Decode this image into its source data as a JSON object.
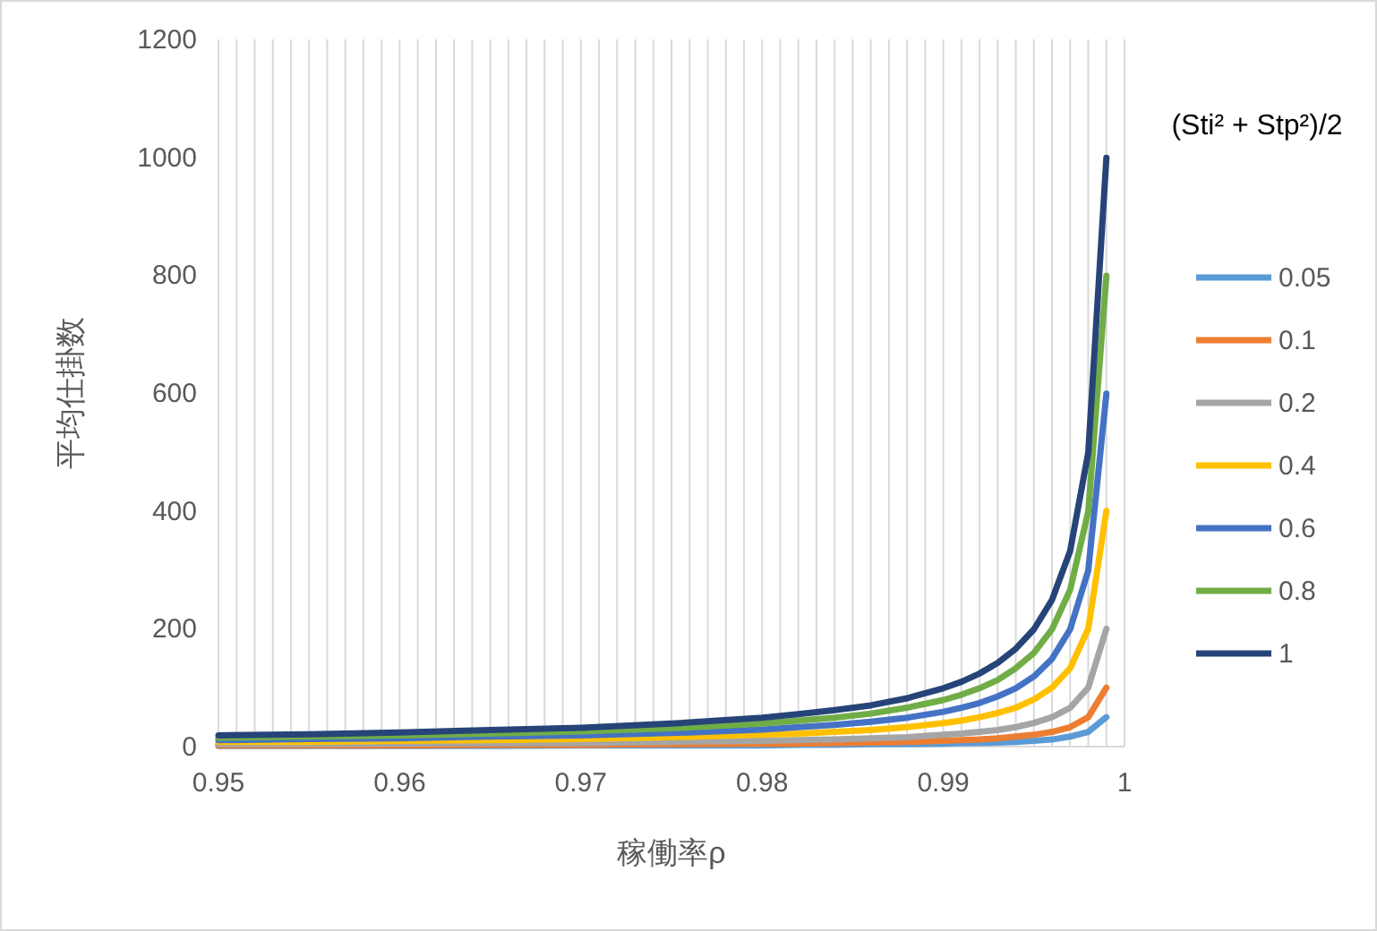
{
  "chart_data": {
    "type": "line",
    "xlabel": "稼働率ρ",
    "ylabel": "平均仕掛数",
    "legend_title": "(Sti² + Stp²)/2",
    "x": [
      0.95,
      0.955,
      0.96,
      0.965,
      0.97,
      0.975,
      0.98,
      0.982,
      0.984,
      0.986,
      0.988,
      0.99,
      0.991,
      0.992,
      0.993,
      0.994,
      0.995,
      0.996,
      0.997,
      0.998,
      0.999
    ],
    "series": [
      {
        "name": "0.05",
        "color": "#5b9bd5",
        "values": [
          1,
          1,
          1,
          1,
          2,
          2,
          2,
          3,
          3,
          4,
          4,
          5,
          6,
          6,
          7,
          8,
          10,
          12,
          17,
          25,
          50
        ]
      },
      {
        "name": "0.1",
        "color": "#ed7d31",
        "values": [
          2,
          2,
          2,
          3,
          3,
          4,
          5,
          5,
          6,
          7,
          8,
          10,
          11,
          12,
          14,
          17,
          20,
          25,
          33,
          50,
          100
        ]
      },
      {
        "name": "0.2",
        "color": "#a5a5a5",
        "values": [
          4,
          4,
          5,
          6,
          6,
          8,
          10,
          11,
          12,
          14,
          16,
          20,
          22,
          25,
          28,
          33,
          40,
          50,
          66,
          100,
          200
        ]
      },
      {
        "name": "0.4",
        "color": "#ffc000",
        "values": [
          8,
          8,
          10,
          11,
          13,
          16,
          20,
          22,
          25,
          28,
          33,
          40,
          44,
          50,
          57,
          66,
          80,
          100,
          133,
          200,
          400
        ]
      },
      {
        "name": "0.6",
        "color": "#4472c4",
        "values": [
          11,
          13,
          14,
          17,
          19,
          23,
          29,
          33,
          37,
          42,
          49,
          59,
          66,
          74,
          85,
          99,
          119,
          149,
          199,
          299,
          599
        ]
      },
      {
        "name": "0.8",
        "color": "#70ad47",
        "values": [
          15,
          17,
          19,
          22,
          26,
          31,
          39,
          44,
          49,
          56,
          66,
          79,
          88,
          99,
          113,
          133,
          159,
          199,
          266,
          399,
          799
        ]
      },
      {
        "name": "1",
        "color": "#264478",
        "values": [
          19,
          21,
          24,
          28,
          32,
          39,
          49,
          55,
          62,
          70,
          82,
          99,
          110,
          124,
          142,
          166,
          199,
          249,
          332,
          499,
          999
        ]
      }
    ],
    "xlim": [
      0.95,
      1
    ],
    "xticks": [
      0.95,
      {
        "value": 0.951,
        "label": null
      },
      {
        "value": 0.952,
        "label": null
      },
      {
        "value": 0.953,
        "label": null
      },
      {
        "value": 0.954,
        "label": null
      },
      {
        "value": 0.955,
        "label": null
      },
      {
        "value": 0.956,
        "label": null
      },
      {
        "value": 0.957,
        "label": null
      },
      {
        "value": 0.958,
        "label": null
      },
      {
        "value": 0.959,
        "label": null
      },
      0.96,
      {
        "value": 0.961,
        "label": null
      },
      {
        "value": 0.962,
        "label": null
      },
      {
        "value": 0.963,
        "label": null
      },
      {
        "value": 0.964,
        "label": null
      },
      {
        "value": 0.965,
        "label": null
      },
      {
        "value": 0.966,
        "label": null
      },
      {
        "value": 0.967,
        "label": null
      },
      {
        "value": 0.968,
        "label": null
      },
      {
        "value": 0.969,
        "label": null
      },
      0.97,
      {
        "value": 0.971,
        "label": null
      },
      {
        "value": 0.972,
        "label": null
      },
      {
        "value": 0.973,
        "label": null
      },
      {
        "value": 0.974,
        "label": null
      },
      {
        "value": 0.975,
        "label": null
      },
      {
        "value": 0.976,
        "label": null
      },
      {
        "value": 0.977,
        "label": null
      },
      {
        "value": 0.978,
        "label": null
      },
      {
        "value": 0.979,
        "label": null
      },
      0.98,
      {
        "value": 0.981,
        "label": null
      },
      {
        "value": 0.982,
        "label": null
      },
      {
        "value": 0.983,
        "label": null
      },
      {
        "value": 0.984,
        "label": null
      },
      {
        "value": 0.985,
        "label": null
      },
      {
        "value": 0.986,
        "label": null
      },
      {
        "value": 0.987,
        "label": null
      },
      {
        "value": 0.988,
        "label": null
      },
      {
        "value": 0.989,
        "label": null
      },
      0.99,
      {
        "value": 0.991,
        "label": null
      },
      {
        "value": 0.992,
        "label": null
      },
      {
        "value": 0.993,
        "label": null
      },
      {
        "value": 0.994,
        "label": null
      },
      {
        "value": 0.995,
        "label": null
      },
      {
        "value": 0.996,
        "label": null
      },
      {
        "value": 0.997,
        "label": null
      },
      {
        "value": 0.998,
        "label": null
      },
      {
        "value": 0.999,
        "label": null
      },
      1
    ],
    "ylim": [
      0,
      1200
    ],
    "yticks": [
      0,
      200,
      400,
      600,
      800,
      1000,
      1200
    ],
    "grid": "x",
    "legend": "right",
    "marker": "none",
    "line_style": "solid"
  }
}
